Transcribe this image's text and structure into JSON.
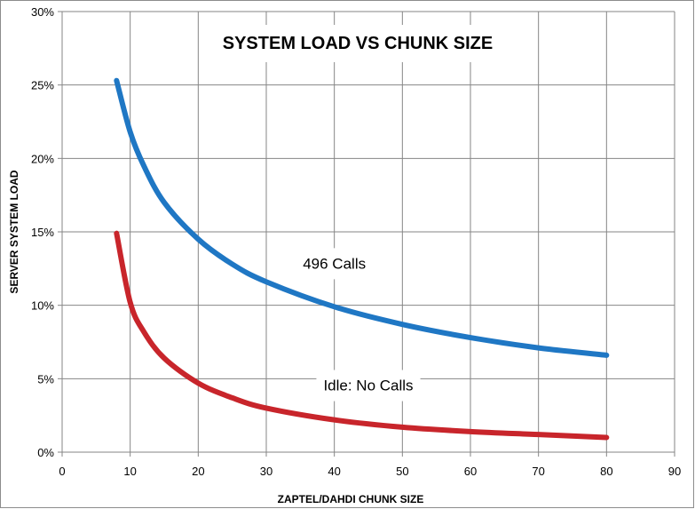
{
  "chart_data": {
    "type": "line",
    "title": "SYSTEM LOAD VS CHUNK SIZE",
    "xlabel": "ZAPTEL/DAHDI CHUNK SIZE",
    "ylabel": "SERVER SYSTEM LOAD",
    "xlim": [
      0,
      90
    ],
    "ylim": [
      0,
      30
    ],
    "x_ticks": [
      0,
      10,
      20,
      30,
      40,
      50,
      60,
      70,
      80,
      90
    ],
    "y_ticks": [
      0,
      5,
      10,
      15,
      20,
      25,
      30
    ],
    "y_tick_suffix": "%",
    "grid": true,
    "legend": "none",
    "series": [
      {
        "name": "496 Calls",
        "color": "#1f77c4",
        "x": [
          8,
          10,
          12,
          15,
          20,
          25,
          30,
          40,
          50,
          60,
          70,
          80
        ],
        "y": [
          25.3,
          21.8,
          19.5,
          17.0,
          14.5,
          12.8,
          11.6,
          9.9,
          8.7,
          7.8,
          7.1,
          6.6
        ]
      },
      {
        "name": "Idle: No Calls",
        "color": "#c8252b",
        "x": [
          8,
          10,
          12,
          15,
          20,
          25,
          30,
          40,
          50,
          60,
          70,
          80
        ],
        "y": [
          14.9,
          10.2,
          8.2,
          6.4,
          4.7,
          3.7,
          3.0,
          2.2,
          1.7,
          1.4,
          1.2,
          1.0
        ]
      }
    ],
    "annotations": [
      {
        "text": "496 Calls",
        "x": 40,
        "y": 12.5
      },
      {
        "text": "Idle: No Calls",
        "x": 45,
        "y": 4.2
      }
    ]
  }
}
